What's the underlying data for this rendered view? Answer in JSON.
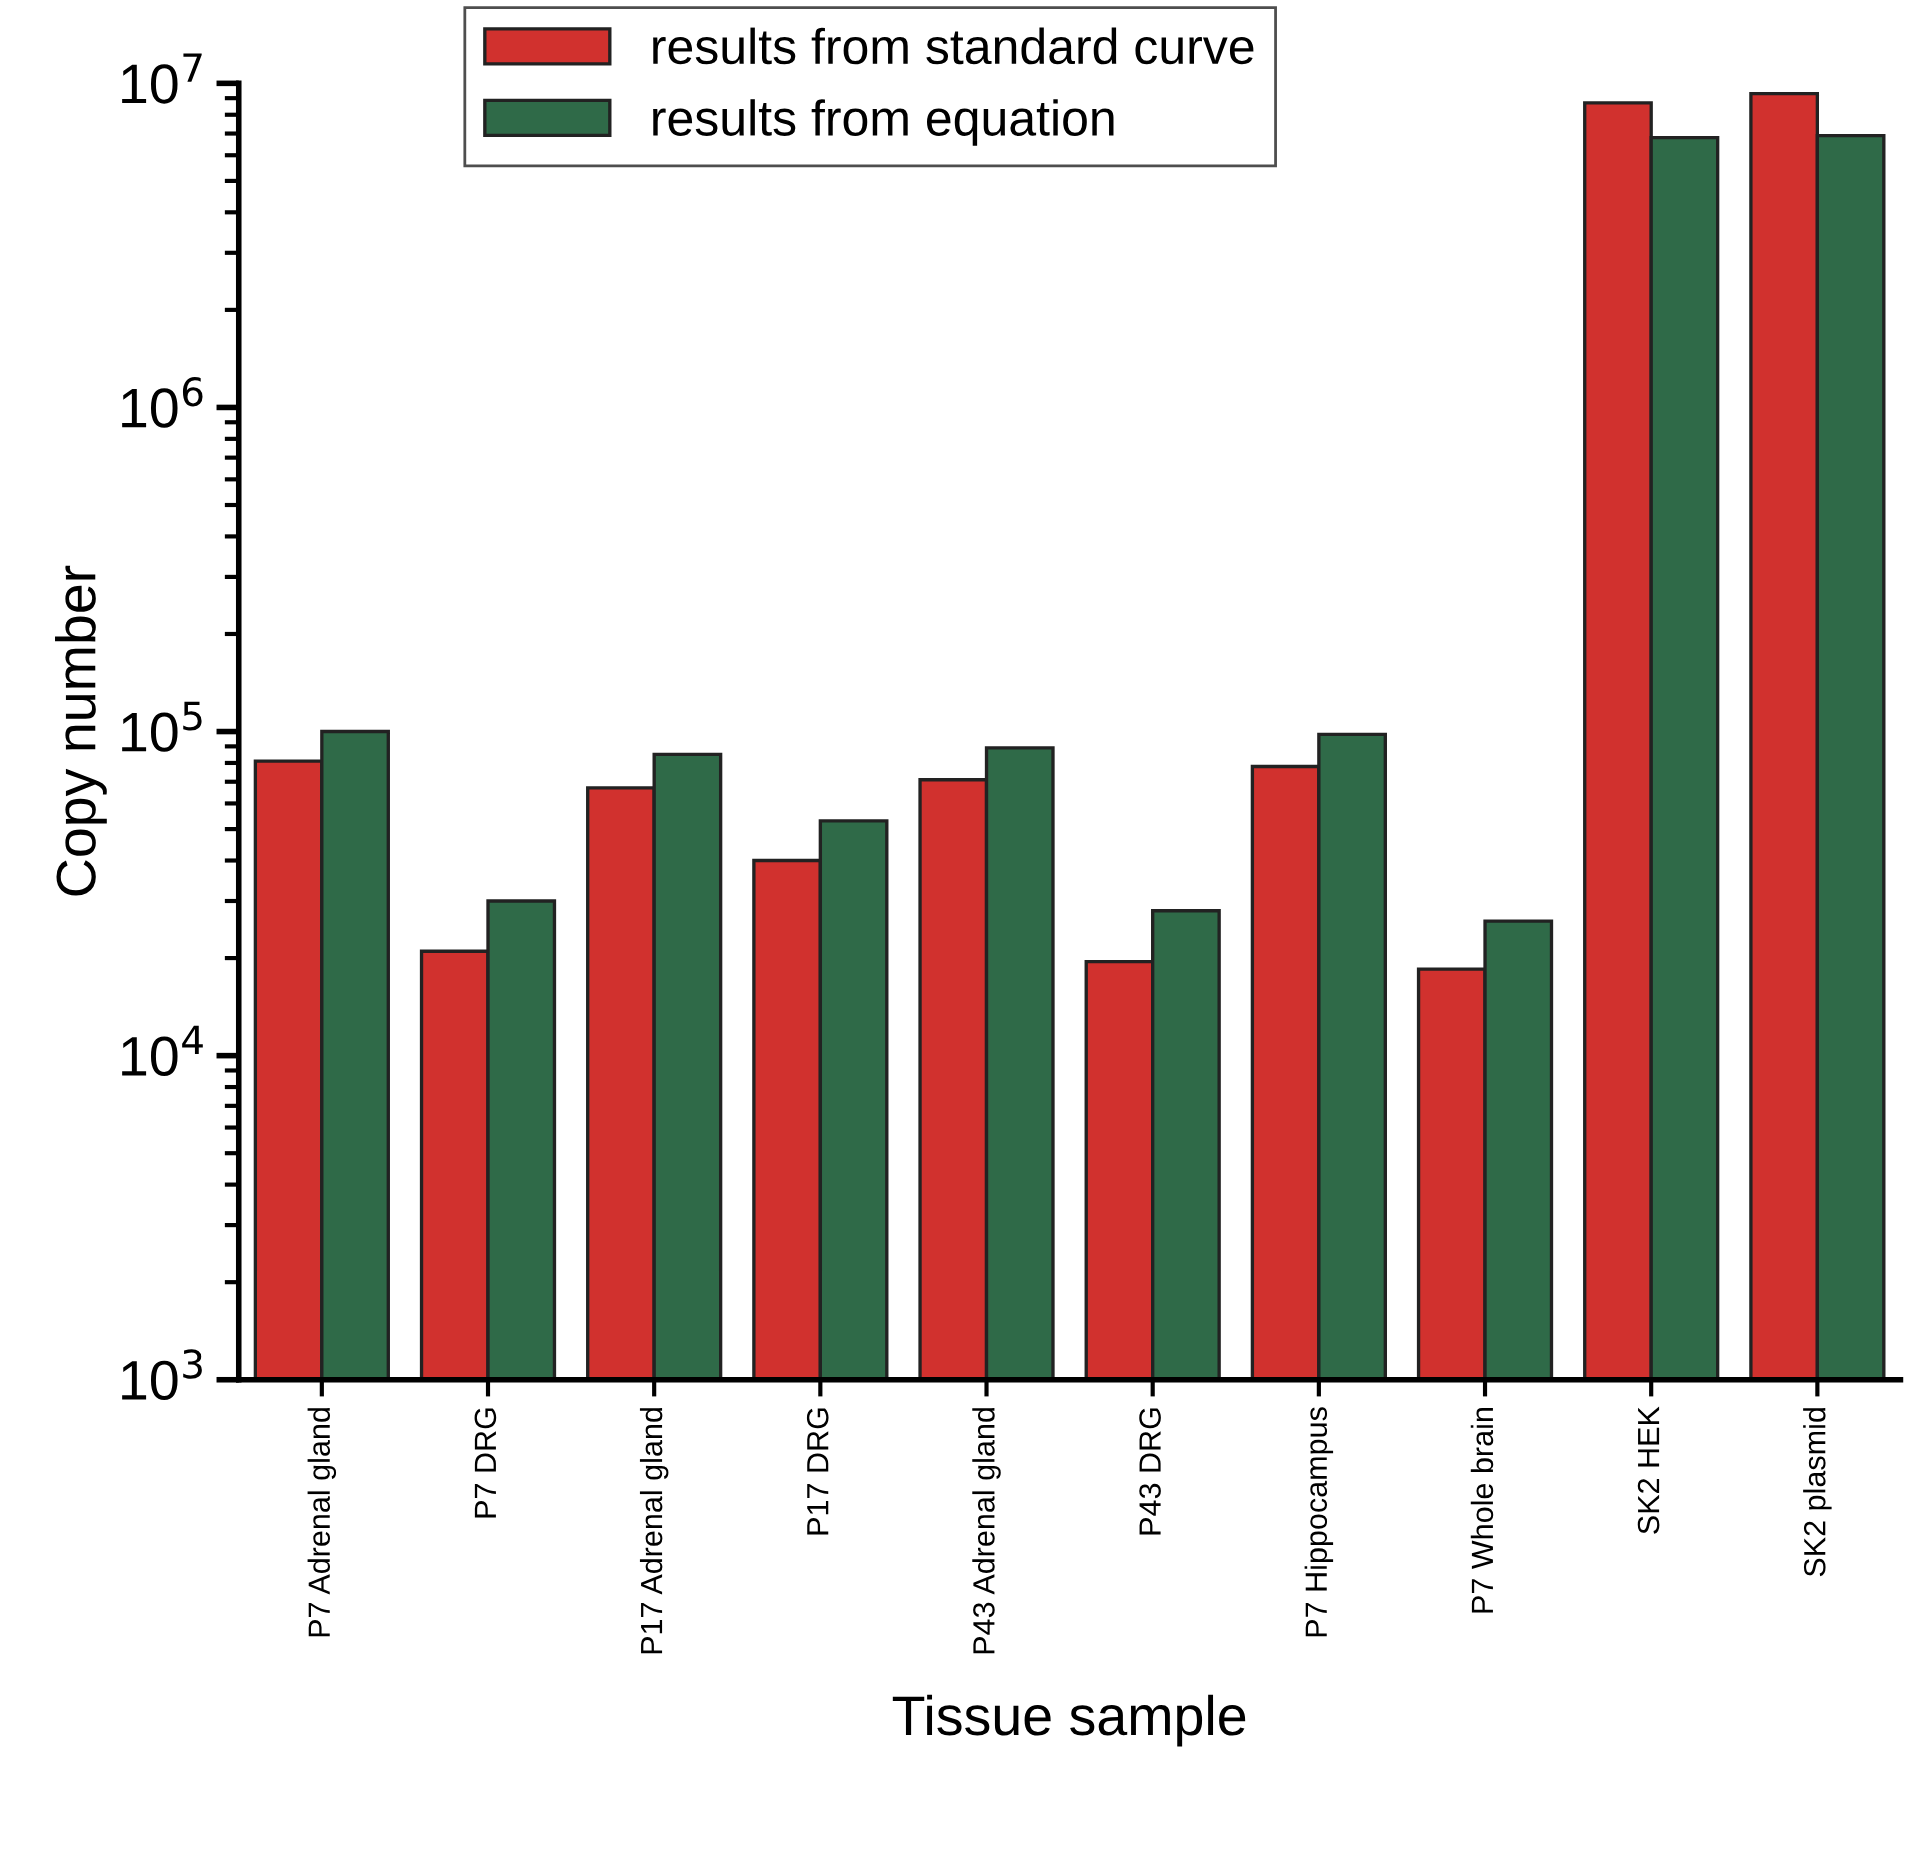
{
  "chart_data": {
    "type": "bar",
    "xlabel": "Tissue sample",
    "ylabel": "Copy number",
    "categories": [
      "P7 Adrenal gland",
      "P7 DRG",
      "P17 Adrenal gland",
      "P17 DRG",
      "P43 Adrenal gland",
      "P43 DRG",
      "P7 Hippocampus",
      "P7 Whole brain",
      "SK2 HEK",
      "SK2 plasmid"
    ],
    "series": [
      {
        "name": "results from standard curve",
        "color": "#d1312e",
        "values": [
          81000,
          21000,
          67000,
          40000,
          71000,
          19500,
          78000,
          18500,
          8700000,
          9300000
        ]
      },
      {
        "name": "results from equation",
        "color": "#2f6a48",
        "values": [
          100000,
          30000,
          85000,
          53000,
          89000,
          28000,
          98000,
          26000,
          6800000,
          6900000
        ]
      }
    ],
    "log": "y",
    "ylim": [
      1000,
      10000000
    ],
    "yticks": [
      {
        "value": 1000,
        "label": "10$^{3}$"
      },
      {
        "value": 10000,
        "label": "10$^{4}$"
      },
      {
        "value": 100000,
        "label": "10$^{5}$"
      },
      {
        "value": 1000000,
        "label": "10$^{6}$"
      },
      {
        "value": 10000000,
        "label": "10$^{7}$"
      }
    ],
    "legend": "top",
    "grid": false
  }
}
